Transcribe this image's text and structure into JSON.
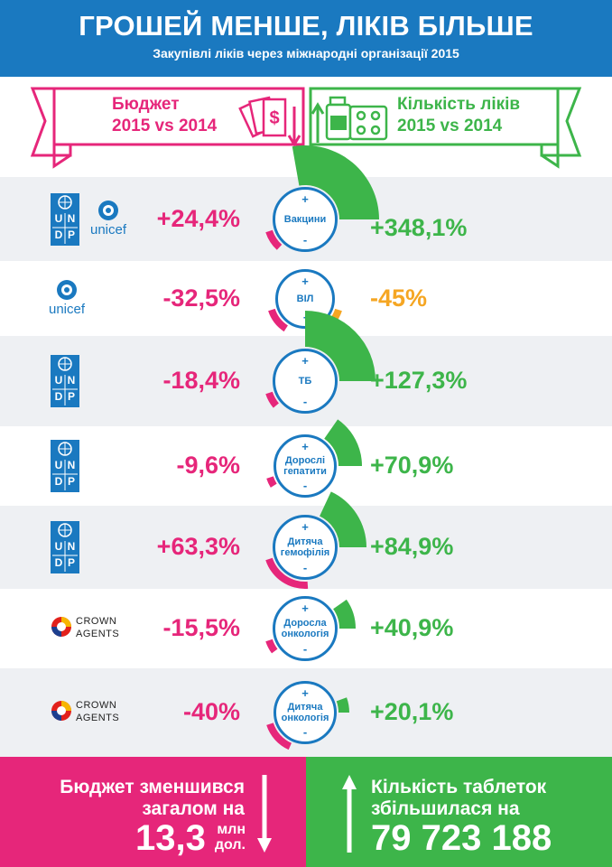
{
  "header": {
    "title": "ГРОШЕЙ МЕНШЕ, ЛІКІВ БІЛЬШЕ",
    "subtitle": "Закупівлі ліків через міжнародні організації 2015"
  },
  "banner": {
    "budget_label": [
      "Бюджет",
      "2015 vs 2014"
    ],
    "quantity_label": [
      "Кількість ліків",
      "2015 vs 2014"
    ]
  },
  "logo_text": {
    "unicef": "unicef",
    "undp": [
      "U",
      "N",
      "D",
      "P"
    ],
    "crown": [
      "CROWN",
      "AGENTS"
    ]
  },
  "rows": [
    {
      "logos": [
        "undp",
        "unicef"
      ],
      "budget": "+24,4%",
      "program": [
        "Вакцини"
      ],
      "quantity": "+348,1%",
      "qty_color": "#3db54a",
      "budget_share": 0.244,
      "qty_share": 1.0
    },
    {
      "logos": [
        "unicef"
      ],
      "budget": "-32,5%",
      "program": [
        "ВІЛ"
      ],
      "quantity": "-45%",
      "qty_color": "#f5a623",
      "budget_share": 0.325,
      "qty_share": 0.45
    },
    {
      "logos": [
        "undp"
      ],
      "budget": "-18,4%",
      "program": [
        "ТБ"
      ],
      "quantity": "+127,3%",
      "qty_color": "#3db54a",
      "budget_share": 0.184,
      "qty_share": 0.9
    },
    {
      "logos": [
        "undp"
      ],
      "budget": "-9,6%",
      "program": [
        "Дорослі",
        "гепатити"
      ],
      "quantity": "+70,9%",
      "qty_color": "#3db54a",
      "budget_share": 0.096,
      "qty_share": 0.55
    },
    {
      "logos": [
        "undp"
      ],
      "budget": "+63,3%",
      "program": [
        "Дитяча",
        "гемофілія"
      ],
      "quantity": "+84,9%",
      "qty_color": "#3db54a",
      "budget_share": 0.633,
      "qty_share": 0.65
    },
    {
      "logos": [
        "crown"
      ],
      "budget": "-15,5%",
      "program": [
        "Доросла",
        "онкологія"
      ],
      "quantity": "+40,9%",
      "qty_color": "#3db54a",
      "budget_share": 0.155,
      "qty_share": 0.35
    },
    {
      "logos": [
        "crown"
      ],
      "budget": "-40%",
      "program": [
        "Дитяча",
        "онкологія"
      ],
      "quantity": "+20,1%",
      "qty_color": "#3db54a",
      "budget_share": 0.4,
      "qty_share": 0.2
    }
  ],
  "circle_signs": {
    "plus": "+",
    "minus": "-"
  },
  "footer": {
    "left_text": [
      "Бюджет зменшився",
      "загалом на"
    ],
    "left_value": "13,3",
    "left_unit": [
      "млн",
      "дол."
    ],
    "right_text": [
      "Кількість таблеток",
      "збільшилася на"
    ],
    "right_value": "79 723 188"
  },
  "colors": {
    "blue": "#1a79c0",
    "pink": "#e6267a",
    "green": "#3db54a",
    "orange": "#f5a623",
    "row_shade": "#eef0f3"
  }
}
